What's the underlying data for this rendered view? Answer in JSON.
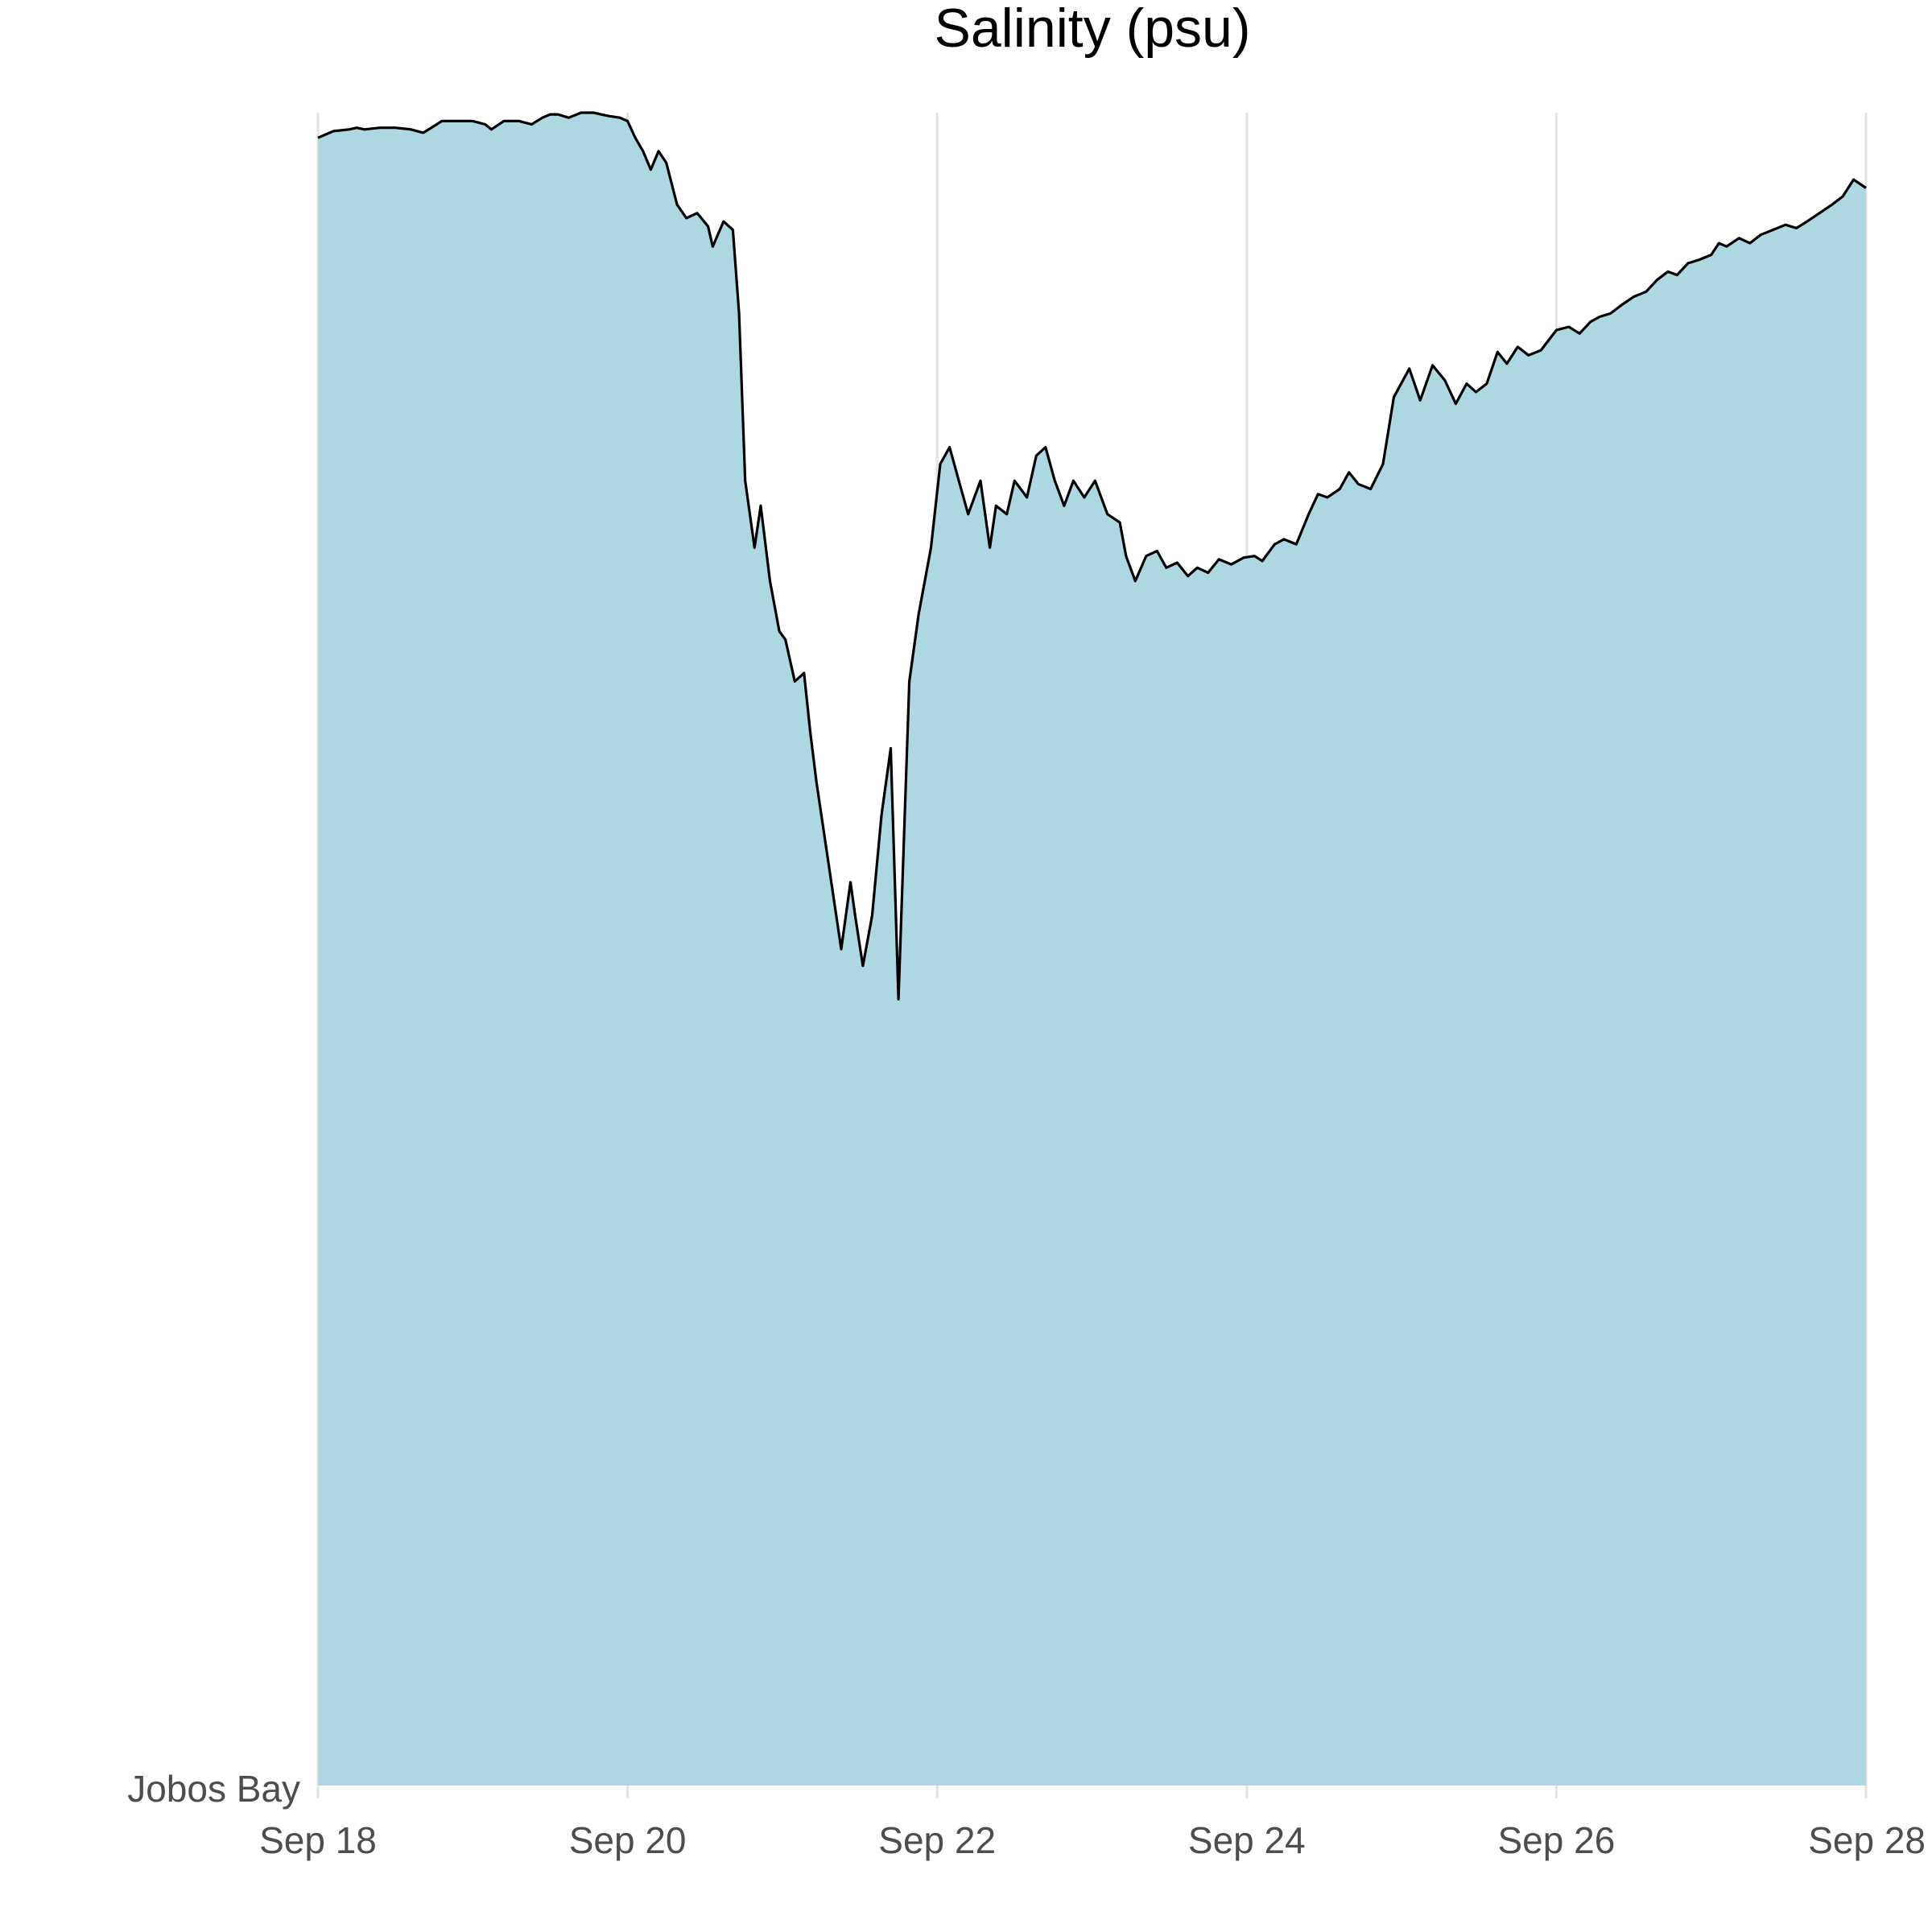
{
  "chart_data": {
    "type": "area",
    "title": "Salinity (psu)",
    "xlabel": "",
    "ylabel": "",
    "category_label": "Jobos Bay",
    "x_ticks": [
      "Sep 18",
      "Sep 20",
      "Sep 22",
      "Sep 24",
      "Sep 26",
      "Sep 28"
    ],
    "x_range_days": [
      18,
      28
    ],
    "y_range_relative": [
      0,
      1
    ],
    "grid": {
      "vertical": true,
      "horizontal": false
    },
    "colors": {
      "fill": "#add8e2",
      "line": "#000000",
      "grid": "#e3e3e3"
    },
    "series": [
      {
        "values_relative": [
          [
            18.0,
            0.985
          ],
          [
            18.1,
            0.989
          ],
          [
            18.2,
            0.99
          ],
          [
            18.25,
            0.991
          ],
          [
            18.3,
            0.99
          ],
          [
            18.4,
            0.991
          ],
          [
            18.5,
            0.991
          ],
          [
            18.6,
            0.99
          ],
          [
            18.68,
            0.988
          ],
          [
            18.75,
            0.992
          ],
          [
            18.8,
            0.995
          ],
          [
            18.9,
            0.995
          ],
          [
            19.0,
            0.995
          ],
          [
            19.08,
            0.993
          ],
          [
            19.12,
            0.99
          ],
          [
            19.2,
            0.995
          ],
          [
            19.3,
            0.995
          ],
          [
            19.38,
            0.993
          ],
          [
            19.45,
            0.997
          ],
          [
            19.5,
            0.999
          ],
          [
            19.55,
            0.999
          ],
          [
            19.62,
            0.997
          ],
          [
            19.7,
            1.0
          ],
          [
            19.78,
            1.0
          ],
          [
            19.88,
            0.998
          ],
          [
            19.95,
            0.997
          ],
          [
            20.0,
            0.995
          ],
          [
            20.05,
            0.985
          ],
          [
            20.1,
            0.977
          ],
          [
            20.15,
            0.966
          ],
          [
            20.2,
            0.977
          ],
          [
            20.25,
            0.97
          ],
          [
            20.32,
            0.945
          ],
          [
            20.38,
            0.937
          ],
          [
            20.45,
            0.94
          ],
          [
            20.52,
            0.932
          ],
          [
            20.55,
            0.92
          ],
          [
            20.62,
            0.935
          ],
          [
            20.68,
            0.93
          ],
          [
            20.72,
            0.88
          ],
          [
            20.76,
            0.78
          ],
          [
            20.82,
            0.74
          ],
          [
            20.86,
            0.765
          ],
          [
            20.92,
            0.72
          ],
          [
            20.98,
            0.69
          ],
          [
            21.02,
            0.685
          ],
          [
            21.08,
            0.66
          ],
          [
            21.14,
            0.665
          ],
          [
            21.18,
            0.63
          ],
          [
            21.22,
            0.6
          ],
          [
            21.3,
            0.55
          ],
          [
            21.38,
            0.5
          ],
          [
            21.44,
            0.54
          ],
          [
            21.47,
            0.52
          ],
          [
            21.52,
            0.49
          ],
          [
            21.58,
            0.52
          ],
          [
            21.64,
            0.58
          ],
          [
            21.7,
            0.62
          ],
          [
            21.75,
            0.47
          ],
          [
            21.82,
            0.66
          ],
          [
            21.88,
            0.7
          ],
          [
            21.96,
            0.74
          ],
          [
            22.02,
            0.79
          ],
          [
            22.08,
            0.8
          ],
          [
            22.14,
            0.78
          ],
          [
            22.2,
            0.76
          ],
          [
            22.28,
            0.78
          ],
          [
            22.34,
            0.74
          ],
          [
            22.38,
            0.765
          ],
          [
            22.45,
            0.76
          ],
          [
            22.5,
            0.78
          ],
          [
            22.58,
            0.77
          ],
          [
            22.64,
            0.795
          ],
          [
            22.7,
            0.8
          ],
          [
            22.76,
            0.78
          ],
          [
            22.82,
            0.765
          ],
          [
            22.88,
            0.78
          ],
          [
            22.95,
            0.77
          ],
          [
            23.02,
            0.78
          ],
          [
            23.1,
            0.76
          ],
          [
            23.18,
            0.755
          ],
          [
            23.22,
            0.735
          ],
          [
            23.28,
            0.72
          ],
          [
            23.35,
            0.735
          ],
          [
            23.42,
            0.738
          ],
          [
            23.48,
            0.728
          ],
          [
            23.55,
            0.731
          ],
          [
            23.62,
            0.723
          ],
          [
            23.68,
            0.728
          ],
          [
            23.75,
            0.725
          ],
          [
            23.82,
            0.733
          ],
          [
            23.9,
            0.73
          ],
          [
            23.98,
            0.734
          ],
          [
            24.05,
            0.735
          ],
          [
            24.1,
            0.732
          ],
          [
            24.18,
            0.742
          ],
          [
            24.24,
            0.745
          ],
          [
            24.32,
            0.742
          ],
          [
            24.4,
            0.76
          ],
          [
            24.46,
            0.772
          ],
          [
            24.52,
            0.77
          ],
          [
            24.6,
            0.775
          ],
          [
            24.66,
            0.785
          ],
          [
            24.72,
            0.778
          ],
          [
            24.8,
            0.775
          ],
          [
            24.88,
            0.79
          ],
          [
            24.95,
            0.83
          ],
          [
            25.05,
            0.847
          ],
          [
            25.12,
            0.828
          ],
          [
            25.2,
            0.849
          ],
          [
            25.28,
            0.84
          ],
          [
            25.35,
            0.826
          ],
          [
            25.42,
            0.838
          ],
          [
            25.48,
            0.833
          ],
          [
            25.55,
            0.838
          ],
          [
            25.62,
            0.857
          ],
          [
            25.68,
            0.85
          ],
          [
            25.75,
            0.86
          ],
          [
            25.82,
            0.855
          ],
          [
            25.9,
            0.858
          ],
          [
            26.0,
            0.87
          ],
          [
            26.08,
            0.872
          ],
          [
            26.15,
            0.868
          ],
          [
            26.22,
            0.875
          ],
          [
            26.28,
            0.878
          ],
          [
            26.35,
            0.88
          ],
          [
            26.42,
            0.885
          ],
          [
            26.5,
            0.89
          ],
          [
            26.58,
            0.893
          ],
          [
            26.65,
            0.9
          ],
          [
            26.72,
            0.905
          ],
          [
            26.78,
            0.903
          ],
          [
            26.85,
            0.91
          ],
          [
            26.92,
            0.912
          ],
          [
            27.0,
            0.915
          ],
          [
            27.05,
            0.922
          ],
          [
            27.1,
            0.92
          ],
          [
            27.18,
            0.925
          ],
          [
            27.25,
            0.922
          ],
          [
            27.32,
            0.927
          ],
          [
            27.4,
            0.93
          ],
          [
            27.48,
            0.933
          ],
          [
            27.55,
            0.931
          ],
          [
            27.62,
            0.935
          ],
          [
            27.7,
            0.94
          ],
          [
            27.78,
            0.945
          ],
          [
            27.85,
            0.95
          ],
          [
            27.92,
            0.96
          ],
          [
            28.0,
            0.955
          ]
        ]
      }
    ]
  }
}
